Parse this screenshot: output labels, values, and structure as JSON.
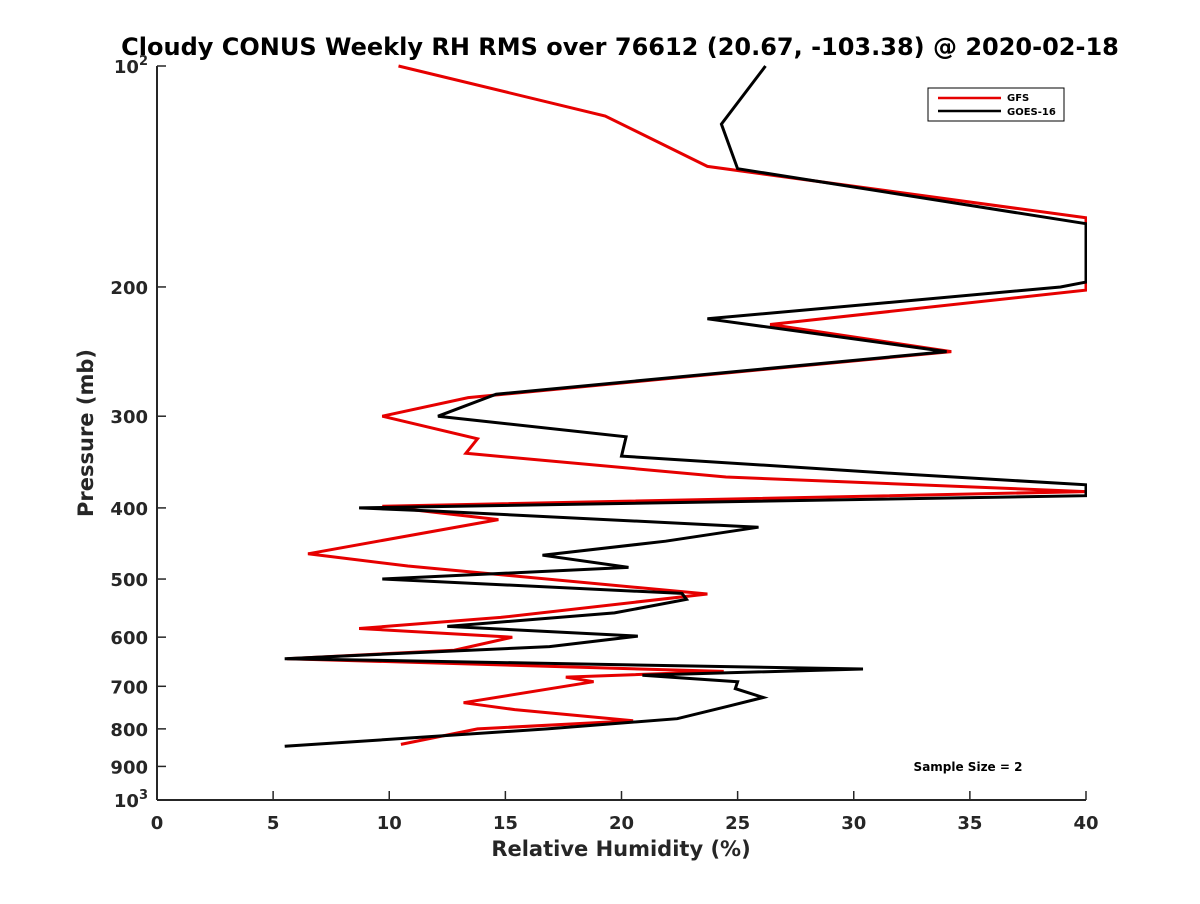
{
  "chart_data": {
    "type": "line",
    "title": "Cloudy CONUS Weekly RH RMS over 76612 (20.67, -103.38) @ 2020-02-18",
    "xlabel": "Relative Humidity (%)",
    "ylabel": "Pressure (mb)",
    "xlim": [
      0,
      40
    ],
    "ylim": [
      100,
      1000
    ],
    "yscale": "log",
    "y_reversed": true,
    "x_ticks": [
      0,
      5,
      10,
      15,
      20,
      25,
      30,
      35,
      40
    ],
    "x_tick_labels": [
      "0",
      "5",
      "10",
      "15",
      "20",
      "25",
      "30",
      "35",
      "40"
    ],
    "y_ticks": [
      {
        "value": 100,
        "base": "10",
        "exp": "2"
      },
      {
        "value": 200,
        "label": "200"
      },
      {
        "value": 300,
        "label": "300"
      },
      {
        "value": 400,
        "label": "400"
      },
      {
        "value": 500,
        "label": "500"
      },
      {
        "value": 600,
        "label": "600"
      },
      {
        "value": 700,
        "label": "700"
      },
      {
        "value": 800,
        "label": "800"
      },
      {
        "value": 900,
        "label": "900"
      },
      {
        "value": 1000,
        "base": "10",
        "exp": "3"
      }
    ],
    "legend": {
      "location": "top-right",
      "entries": [
        "GFS",
        "GOES-16"
      ]
    },
    "annotation": "Sample Size = 2",
    "series": [
      {
        "name": "GFS",
        "color": "#e60000",
        "points": [
          [
            10.4,
            100
          ],
          [
            19.3,
            117
          ],
          [
            23.7,
            137
          ],
          [
            40,
            161
          ],
          [
            40,
            202
          ],
          [
            26.4,
            225
          ],
          [
            34.2,
            245
          ],
          [
            13.4,
            283
          ],
          [
            9.7,
            300
          ],
          [
            13.8,
            322
          ],
          [
            13.3,
            337
          ],
          [
            24.5,
            363
          ],
          [
            40,
            380
          ],
          [
            9.7,
            398
          ],
          [
            14.7,
            415
          ],
          [
            6.5,
            462
          ],
          [
            10.8,
            480
          ],
          [
            23.7,
            524
          ],
          [
            14.8,
            564
          ],
          [
            8.7,
            584
          ],
          [
            15.3,
            600
          ],
          [
            12.8,
            625
          ],
          [
            5.6,
            642
          ],
          [
            24.4,
            668
          ],
          [
            17.6,
            680
          ],
          [
            18.8,
            690
          ],
          [
            13.2,
            737
          ],
          [
            15.4,
            753
          ],
          [
            20.5,
            780
          ],
          [
            13.8,
            800
          ],
          [
            10.5,
            840
          ]
        ]
      },
      {
        "name": "GOES-16",
        "color": "#000000",
        "points": [
          [
            26.2,
            100
          ],
          [
            24.3,
            120
          ],
          [
            25.0,
            138
          ],
          [
            40,
            164
          ],
          [
            40,
            197
          ],
          [
            38.9,
            200
          ],
          [
            23.7,
            221
          ],
          [
            34.0,
            245
          ],
          [
            14.6,
            280
          ],
          [
            12.1,
            300
          ],
          [
            20.2,
            320
          ],
          [
            20.0,
            340
          ],
          [
            32.3,
            360
          ],
          [
            40,
            372
          ],
          [
            40,
            385
          ],
          [
            8.7,
            400
          ],
          [
            12.0,
            404
          ],
          [
            25.9,
            425
          ],
          [
            21.9,
            444
          ],
          [
            16.6,
            464
          ],
          [
            20.3,
            482
          ],
          [
            9.7,
            500
          ],
          [
            22.6,
            523
          ],
          [
            22.8,
            533
          ],
          [
            19.7,
            556
          ],
          [
            12.5,
            580
          ],
          [
            20.7,
            598
          ],
          [
            16.9,
            618
          ],
          [
            5.5,
            642
          ],
          [
            30.4,
            663
          ],
          [
            20.9,
            676
          ],
          [
            25.0,
            690
          ],
          [
            24.9,
            705
          ],
          [
            26.1,
            725
          ],
          [
            24.6,
            745
          ],
          [
            22.4,
            775
          ],
          [
            16.8,
            800
          ],
          [
            5.5,
            845
          ]
        ]
      }
    ]
  }
}
